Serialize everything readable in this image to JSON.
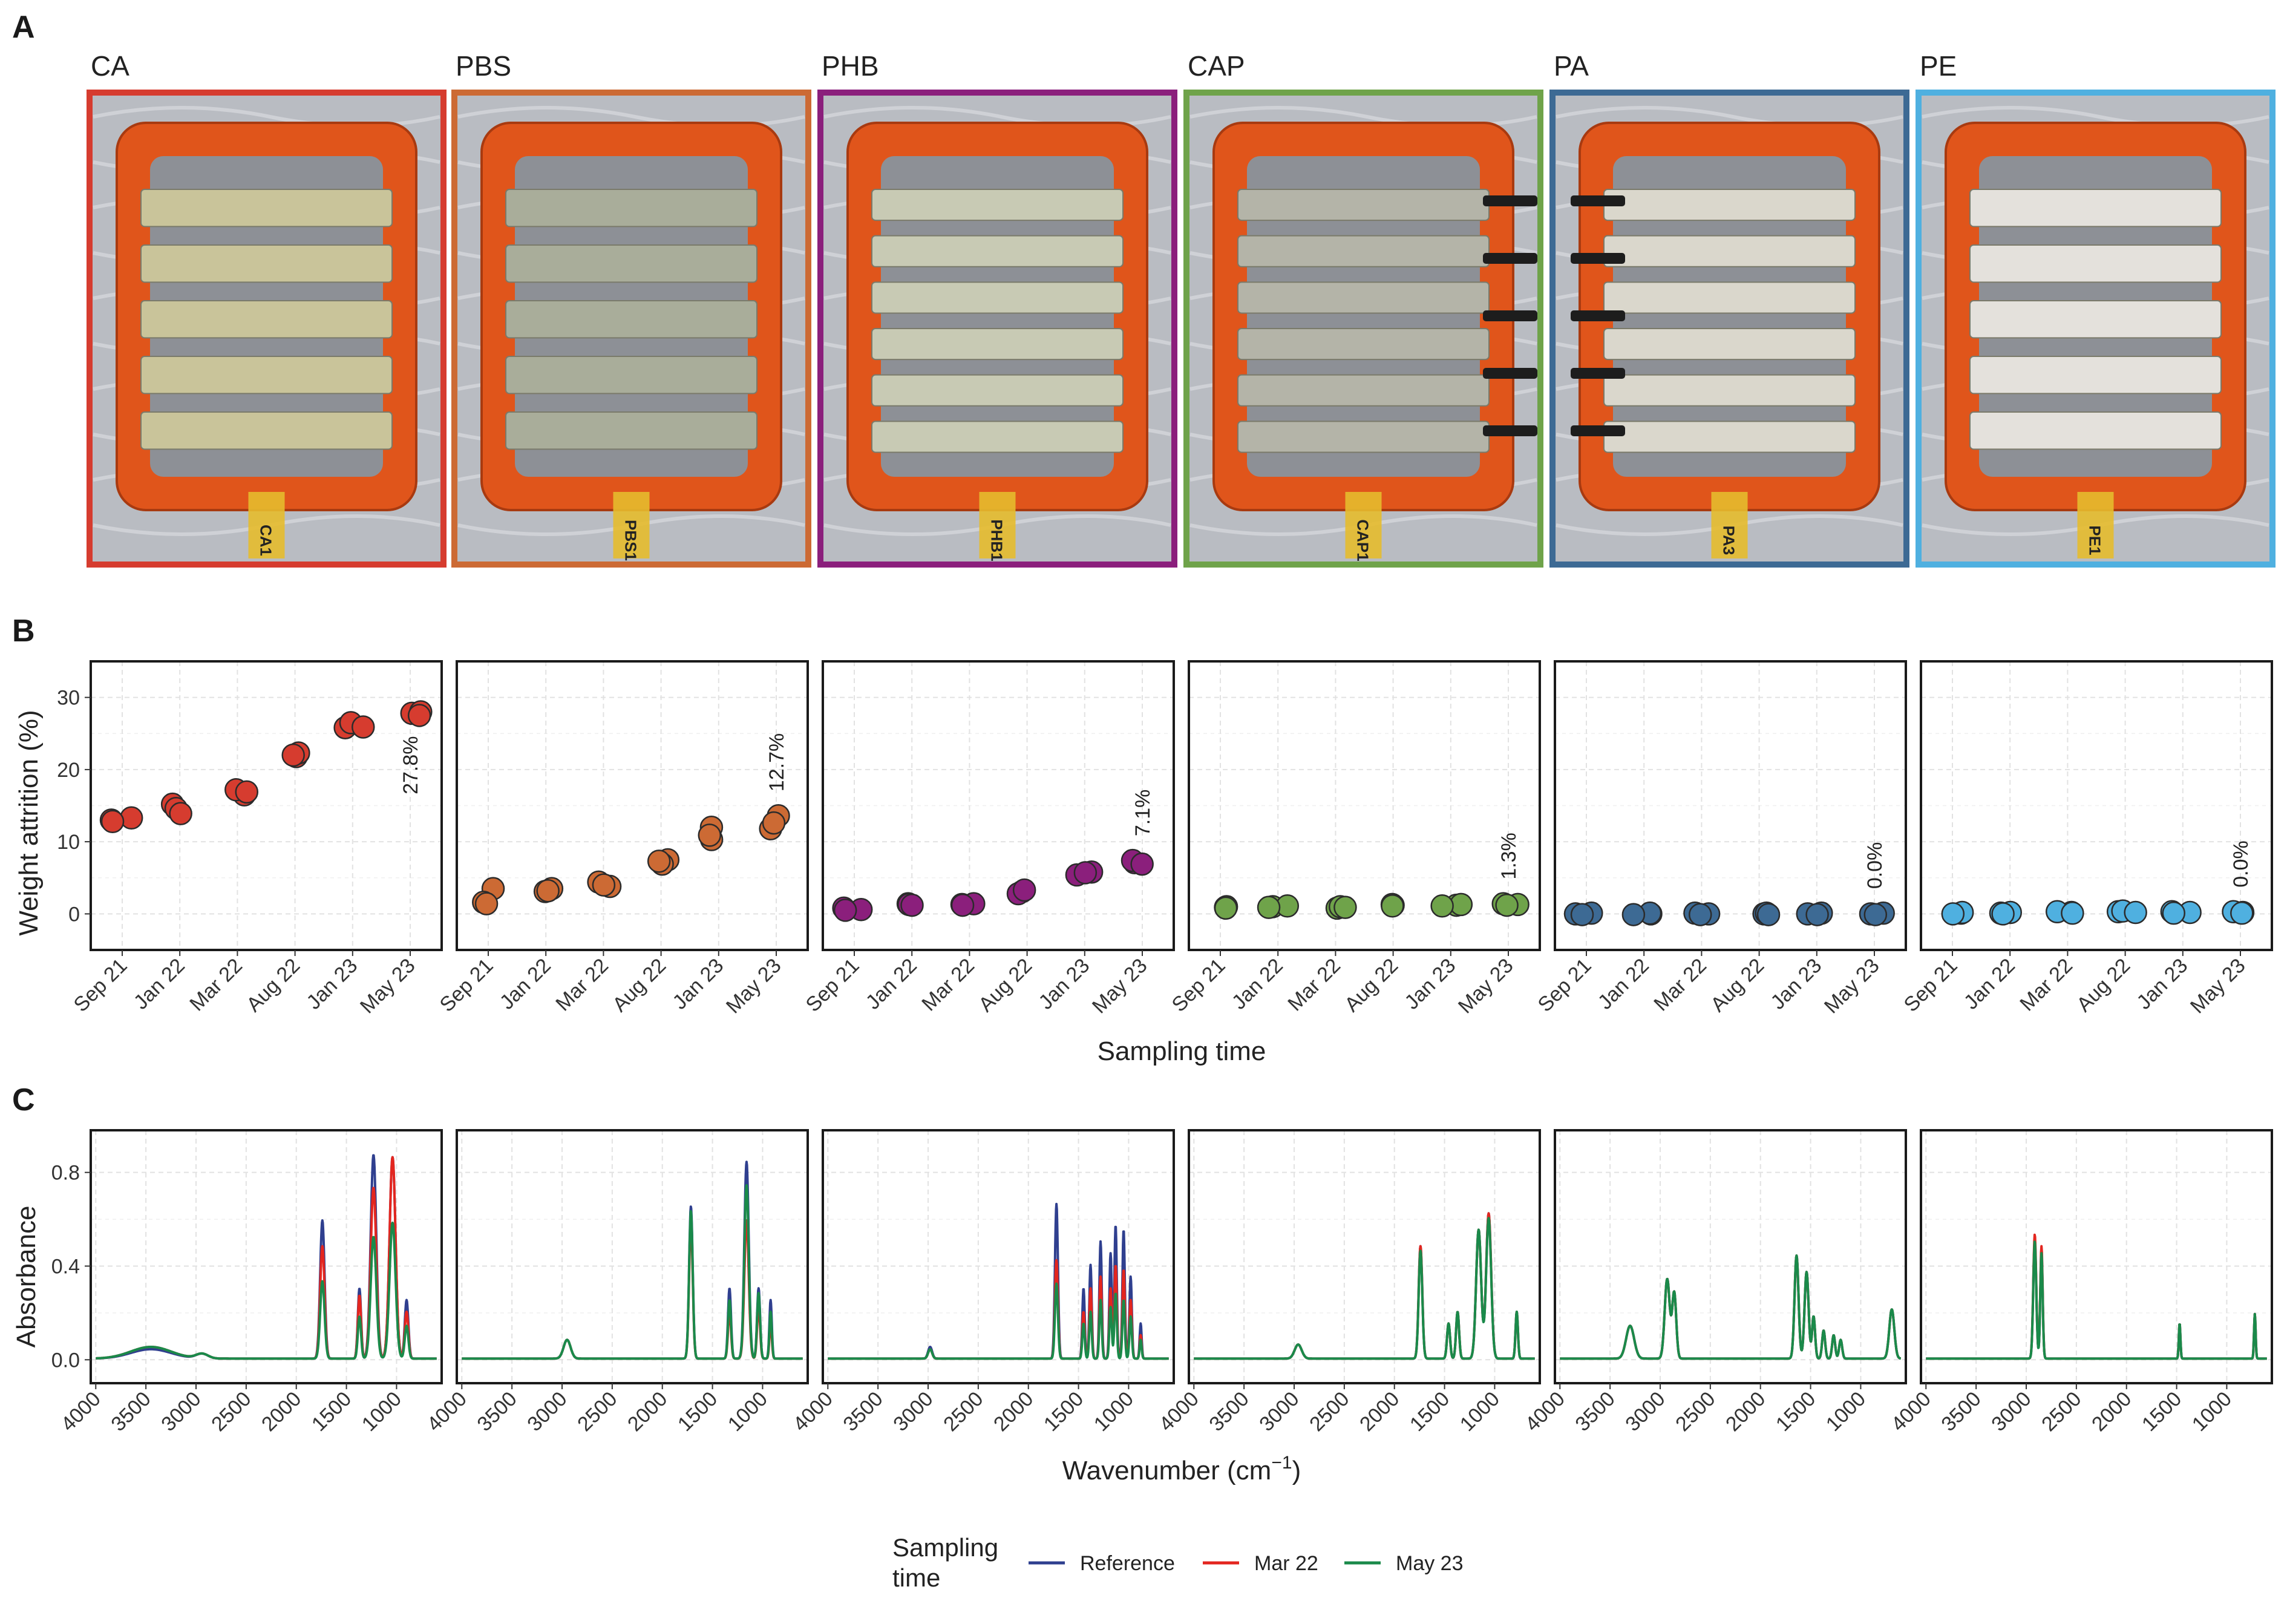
{
  "panel_labels": {
    "a": "A",
    "b": "B",
    "c": "C"
  },
  "materials": [
    {
      "name": "CA",
      "color": "#d63c2f",
      "weight_label": "27.8%"
    },
    {
      "name": "PBS",
      "color": "#cc6a34",
      "weight_label": "12.7%"
    },
    {
      "name": "PHB",
      "color": "#8b1f7c",
      "weight_label": "7.1%"
    },
    {
      "name": "CAP",
      "color": "#6fa34a",
      "weight_label": "1.3%"
    },
    {
      "name": "PA",
      "color": "#3d6a94",
      "weight_label": "0.0%"
    },
    {
      "name": "PE",
      "color": "#4fb0e0",
      "weight_label": "0.0%"
    }
  ],
  "photos": {
    "frame_color": "#e0551b",
    "foil_color": "#b9bcc2",
    "strips": {
      "CA": [
        "#c9c49a",
        5
      ],
      "PBS": [
        "#a9ad9a",
        5
      ],
      "PHB": [
        "#c8cab4",
        6
      ],
      "CAP": [
        "#b4b4a8",
        6
      ],
      "PA": [
        "#dad7cc",
        6
      ],
      "PE": [
        "#e4e1dc",
        5
      ]
    },
    "tags": [
      "CA1",
      "PBS1",
      "PHB1",
      "CAP1",
      "PA3",
      "PE1"
    ]
  },
  "chart_data": [
    {
      "type": "scatter",
      "panel": "B",
      "ylabel": "Weight attrition (%)",
      "xlabel": "Sampling time",
      "categories": [
        "Sep 21",
        "Jan 22",
        "Mar 22",
        "Aug 22",
        "Jan 23",
        "May 23"
      ],
      "ylim": [
        -5,
        35
      ],
      "yticks": [
        0,
        10,
        20,
        30
      ],
      "grid": true,
      "series": [
        {
          "material": "CA",
          "values": [
            [
              13.0,
              13.3,
              12.8
            ],
            [
              15.2,
              14.6,
              13.9
            ],
            [
              16.5,
              17.2,
              16.9
            ],
            [
              21.8,
              22.3,
              22.0
            ],
            [
              25.8,
              26.5,
              25.9
            ],
            [
              27.8,
              28.0,
              27.5
            ]
          ]
        },
        {
          "material": "PBS",
          "values": [
            [
              3.5,
              1.6,
              1.4
            ],
            [
              3.1,
              3.5,
              3.2
            ],
            [
              3.8,
              4.4,
              4.0
            ],
            [
              7.5,
              6.9,
              7.3
            ],
            [
              10.3,
              12.0,
              10.9
            ],
            [
              13.6,
              11.8,
              12.6
            ]
          ]
        },
        {
          "material": "PHB",
          "values": [
            [
              0.6,
              0.8,
              0.5
            ],
            [
              1.4,
              1.3,
              1.2
            ],
            [
              1.3,
              1.4,
              1.2
            ],
            [
              3.1,
              2.8,
              3.3
            ],
            [
              5.8,
              5.4,
              5.7
            ],
            [
              7.1,
              7.4,
              6.9
            ]
          ]
        },
        {
          "material": "CAP",
          "values": [
            [
              0.9,
              1.0,
              0.8
            ],
            [
              1.0,
              1.1,
              0.9
            ],
            [
              0.8,
              1.0,
              0.9
            ],
            [
              1.2,
              1.3,
              1.1
            ],
            [
              1.2,
              1.3,
              1.1
            ],
            [
              1.3,
              1.4,
              1.2
            ]
          ]
        },
        {
          "material": "PA",
          "values": [
            [
              0.0,
              0.1,
              -0.1
            ],
            [
              0.0,
              0.1,
              -0.1
            ],
            [
              0.0,
              0.1,
              -0.1
            ],
            [
              0.0,
              0.1,
              -0.1
            ],
            [
              0.0,
              0.1,
              -0.1
            ],
            [
              0.0,
              0.1,
              -0.1
            ]
          ]
        },
        {
          "material": "PE",
          "values": [
            [
              0.1,
              0.2,
              0.0
            ],
            [
              0.1,
              0.2,
              0.0
            ],
            [
              0.2,
              0.3,
              0.1
            ],
            [
              0.3,
              0.4,
              0.2
            ],
            [
              0.2,
              0.3,
              0.1
            ],
            [
              0.2,
              0.3,
              0.1
            ]
          ]
        }
      ]
    },
    {
      "type": "line",
      "panel": "C",
      "ylabel": "Absorbance",
      "xlabel": "Wavenumber (cm",
      "xlabel_sup": "−1",
      "xlabel_end": ")",
      "xlim": [
        4050,
        550
      ],
      "xticks": [
        4000,
        3500,
        3000,
        2500,
        2000,
        1500,
        1000
      ],
      "ylim": [
        -0.1,
        0.98
      ],
      "yticks": [
        0.0,
        0.4,
        0.8
      ],
      "grid": true,
      "legend": {
        "title_line1": "Sampling",
        "title_line2": "time",
        "position": "bottom",
        "items": [
          {
            "name": "Reference",
            "color": "#2f3f8f"
          },
          {
            "name": "Mar 22",
            "color": "#e3261f"
          },
          {
            "name": "May 23",
            "color": "#1a8a4a"
          }
        ]
      },
      "spectra": [
        {
          "material": "CA",
          "peaks": {
            "Reference": [
              [
                3450,
                0.04,
                200
              ],
              [
                2940,
                0.02,
                60
              ],
              [
                1740,
                0.59,
                22
              ],
              [
                1370,
                0.3,
                16
              ],
              [
                1230,
                0.87,
                28
              ],
              [
                1040,
                0.86,
                30
              ],
              [
                900,
                0.25,
                18
              ]
            ],
            "Mar 22": [
              [
                3450,
                0.05,
                200
              ],
              [
                2940,
                0.02,
                60
              ],
              [
                1740,
                0.48,
                22
              ],
              [
                1370,
                0.27,
                16
              ],
              [
                1230,
                0.73,
                28
              ],
              [
                1040,
                0.86,
                30
              ],
              [
                900,
                0.2,
                18
              ]
            ],
            "May 23": [
              [
                3450,
                0.05,
                200
              ],
              [
                2940,
                0.02,
                60
              ],
              [
                1740,
                0.33,
                22
              ],
              [
                1370,
                0.18,
                16
              ],
              [
                1230,
                0.52,
                28
              ],
              [
                1040,
                0.58,
                30
              ],
              [
                900,
                0.14,
                18
              ]
            ]
          }
        },
        {
          "material": "PBS",
          "peaks": {
            "Reference": [
              [
                2950,
                0.08,
                35
              ],
              [
                1715,
                0.65,
                18
              ],
              [
                1330,
                0.3,
                15
              ],
              [
                1160,
                0.84,
                22
              ],
              [
                1040,
                0.3,
                15
              ],
              [
                920,
                0.25,
                12
              ]
            ],
            "Mar 22": [
              [
                2950,
                0.08,
                35
              ],
              [
                1715,
                0.58,
                18
              ],
              [
                1330,
                0.2,
                15
              ],
              [
                1160,
                0.59,
                22
              ],
              [
                1040,
                0.22,
                15
              ],
              [
                920,
                0.15,
                12
              ]
            ],
            "May 23": [
              [
                2950,
                0.08,
                35
              ],
              [
                1715,
                0.63,
                18
              ],
              [
                1330,
                0.25,
                15
              ],
              [
                1160,
                0.74,
                22
              ],
              [
                1040,
                0.28,
                15
              ],
              [
                920,
                0.2,
                12
              ]
            ]
          }
        },
        {
          "material": "PHB",
          "peaks": {
            "Reference": [
              [
                2980,
                0.05,
                20
              ],
              [
                1720,
                0.66,
                15
              ],
              [
                1450,
                0.3,
                12
              ],
              [
                1380,
                0.4,
                12
              ],
              [
                1280,
                0.5,
                12
              ],
              [
                1180,
                0.45,
                12
              ],
              [
                1130,
                0.57,
                12
              ],
              [
                1050,
                0.55,
                12
              ],
              [
                980,
                0.35,
                12
              ],
              [
                880,
                0.15,
                10
              ]
            ],
            "Mar 22": [
              [
                2980,
                0.04,
                20
              ],
              [
                1720,
                0.42,
                15
              ],
              [
                1450,
                0.2,
                12
              ],
              [
                1380,
                0.3,
                12
              ],
              [
                1280,
                0.35,
                12
              ],
              [
                1180,
                0.3,
                12
              ],
              [
                1130,
                0.4,
                12
              ],
              [
                1050,
                0.38,
                12
              ],
              [
                980,
                0.25,
                12
              ],
              [
                880,
                0.1,
                10
              ]
            ],
            "May 23": [
              [
                2980,
                0.04,
                20
              ],
              [
                1720,
                0.32,
                15
              ],
              [
                1450,
                0.15,
                12
              ],
              [
                1380,
                0.2,
                12
              ],
              [
                1280,
                0.25,
                12
              ],
              [
                1180,
                0.22,
                12
              ],
              [
                1130,
                0.28,
                12
              ],
              [
                1050,
                0.25,
                12
              ],
              [
                980,
                0.18,
                12
              ],
              [
                880,
                0.08,
                10
              ]
            ]
          }
        },
        {
          "material": "CAP",
          "peaks": {
            "Reference": [
              [
                2960,
                0.06,
                35
              ],
              [
                1740,
                0.48,
                18
              ],
              [
                1460,
                0.15,
                15
              ],
              [
                1370,
                0.2,
                15
              ],
              [
                1160,
                0.55,
                25
              ],
              [
                1060,
                0.62,
                25
              ],
              [
                780,
                0.2,
                12
              ]
            ],
            "Mar 22": [
              [
                2960,
                0.06,
                35
              ],
              [
                1740,
                0.48,
                18
              ],
              [
                1460,
                0.15,
                15
              ],
              [
                1370,
                0.2,
                15
              ],
              [
                1160,
                0.55,
                25
              ],
              [
                1060,
                0.62,
                25
              ],
              [
                780,
                0.2,
                12
              ]
            ],
            "May 23": [
              [
                2960,
                0.06,
                35
              ],
              [
                1740,
                0.46,
                18
              ],
              [
                1460,
                0.15,
                15
              ],
              [
                1370,
                0.2,
                15
              ],
              [
                1160,
                0.55,
                25
              ],
              [
                1060,
                0.6,
                25
              ],
              [
                780,
                0.2,
                12
              ]
            ]
          }
        },
        {
          "material": "PA",
          "peaks": {
            "Reference": [
              [
                3300,
                0.14,
                40
              ],
              [
                2930,
                0.34,
                25
              ],
              [
                2860,
                0.28,
                20
              ],
              [
                1640,
                0.44,
                20
              ],
              [
                1540,
                0.37,
                20
              ],
              [
                1470,
                0.18,
                15
              ],
              [
                1370,
                0.12,
                15
              ],
              [
                1270,
                0.1,
                15
              ],
              [
                1200,
                0.08,
                15
              ],
              [
                690,
                0.21,
                25
              ]
            ],
            "Mar 22": [
              [
                3300,
                0.14,
                40
              ],
              [
                2930,
                0.34,
                25
              ],
              [
                2860,
                0.28,
                20
              ],
              [
                1640,
                0.44,
                20
              ],
              [
                1540,
                0.37,
                20
              ],
              [
                1470,
                0.18,
                15
              ],
              [
                1370,
                0.12,
                15
              ],
              [
                1270,
                0.1,
                15
              ],
              [
                1200,
                0.08,
                15
              ],
              [
                690,
                0.21,
                25
              ]
            ],
            "May 23": [
              [
                3300,
                0.14,
                40
              ],
              [
                2930,
                0.34,
                25
              ],
              [
                2860,
                0.28,
                20
              ],
              [
                1640,
                0.44,
                20
              ],
              [
                1540,
                0.37,
                20
              ],
              [
                1470,
                0.18,
                15
              ],
              [
                1370,
                0.12,
                15
              ],
              [
                1270,
                0.1,
                15
              ],
              [
                1200,
                0.08,
                15
              ],
              [
                690,
                0.21,
                25
              ]
            ]
          }
        },
        {
          "material": "PE",
          "peaks": {
            "Reference": [
              [
                2915,
                0.51,
                15
              ],
              [
                2848,
                0.46,
                12
              ],
              [
                1470,
                0.15,
                8
              ],
              [
                720,
                0.19,
                8
              ]
            ],
            "Mar 22": [
              [
                2915,
                0.53,
                15
              ],
              [
                2848,
                0.48,
                12
              ],
              [
                1470,
                0.15,
                8
              ],
              [
                720,
                0.19,
                8
              ]
            ],
            "May 23": [
              [
                2915,
                0.5,
                15
              ],
              [
                2848,
                0.45,
                12
              ],
              [
                1470,
                0.15,
                8
              ],
              [
                720,
                0.19,
                8
              ]
            ]
          }
        }
      ]
    }
  ]
}
